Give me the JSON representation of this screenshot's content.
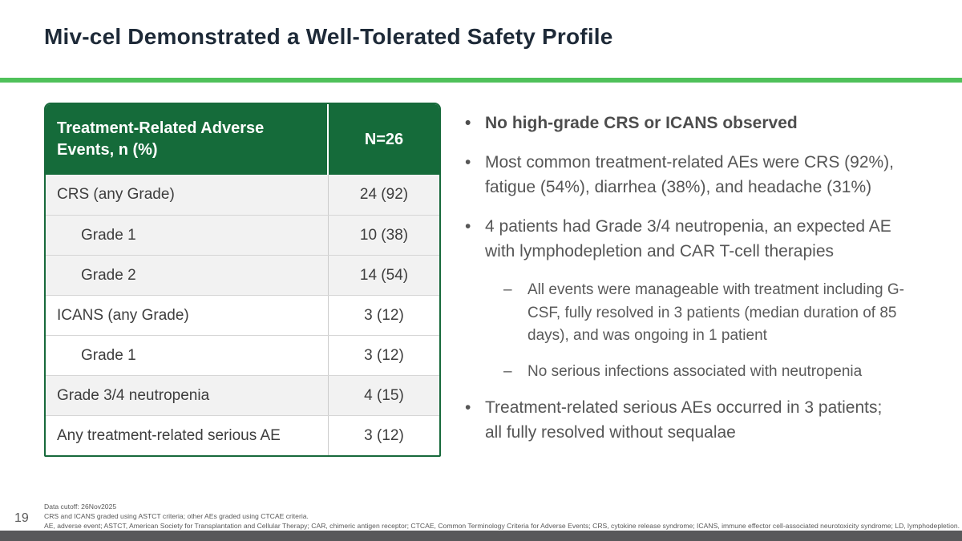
{
  "slide": {
    "title": "Miv-cel Demonstrated a Well-Tolerated Safety Profile",
    "page_number": "19"
  },
  "colors": {
    "accent_green_rule": "#4FC15A",
    "table_header_green": "#156B3A",
    "table_border_green": "#17693B",
    "row_shaded_gray": "#F2F2F2",
    "body_text_gray": "#565656",
    "footer_bar_gray": "#58585A",
    "title_dark": "#1E2A38"
  },
  "table": {
    "header": {
      "label": "Treatment-Related Adverse Events, n (%)",
      "value": "N=26"
    },
    "rows": [
      {
        "label": "CRS (any Grade)",
        "value": "24 (92)",
        "indent": false,
        "shaded": true
      },
      {
        "label": "Grade 1",
        "value": "10 (38)",
        "indent": true,
        "shaded": true
      },
      {
        "label": "Grade 2",
        "value": "14 (54)",
        "indent": true,
        "shaded": true
      },
      {
        "label": "ICANS (any Grade)",
        "value": "3 (12)",
        "indent": false,
        "shaded": false
      },
      {
        "label": "Grade 1",
        "value": "3 (12)",
        "indent": true,
        "shaded": false
      },
      {
        "label": "Grade 3/4 neutropenia",
        "value": "4 (15)",
        "indent": false,
        "shaded": true
      },
      {
        "label": "Any treatment-related serious AE",
        "value": "3 (12)",
        "indent": false,
        "shaded": false
      }
    ]
  },
  "bullets": {
    "bullet_char": "•",
    "dash_char": "–",
    "items": [
      {
        "level": 1,
        "bold": true,
        "text": "No high-grade CRS or ICANS observed"
      },
      {
        "level": 1,
        "bold": false,
        "text": "Most common treatment-related AEs were CRS (92%), fatigue (54%), diarrhea (38%), and headache (31%)"
      },
      {
        "level": 1,
        "bold": false,
        "text": "4 patients had Grade 3/4 neutropenia, an expected AE with lymphodepletion and CAR T-cell therapies"
      },
      {
        "level": 2,
        "bold": false,
        "text": "All events were manageable with treatment including G-CSF, fully resolved in 3 patients (median duration of 85 days), and was ongoing in 1 patient"
      },
      {
        "level": 2,
        "bold": false,
        "text": "No serious infections associated with neutropenia"
      },
      {
        "level": 1,
        "bold": false,
        "text": "Treatment-related serious AEs occurred in 3 patients; all fully resolved without sequalae"
      }
    ]
  },
  "footer": {
    "lines": [
      "Data cutoff: 26Nov2025",
      "CRS and ICANS graded using ASTCT criteria; other AEs graded using CTCAE criteria.",
      "AE, adverse event; ASTCT, American Society for Transplantation and Cellular Therapy; CAR, chimeric antigen receptor; CTCAE, Common Terminology Criteria for Adverse Events; CRS, cytokine release syndrome; ICANS, immune effector cell-associated neurotoxicity syndrome; LD, lymphodepletion."
    ]
  }
}
